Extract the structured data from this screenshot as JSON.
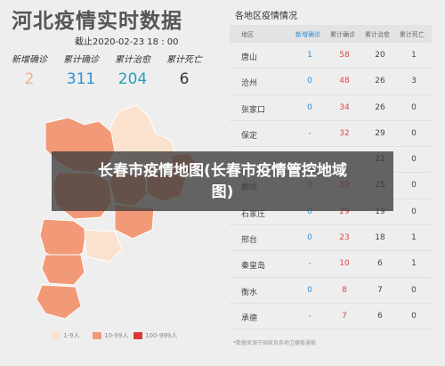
{
  "header": {
    "title": "河北疫情实时数据",
    "deadline": "截止2020-02-23 18 : 00"
  },
  "stats": [
    {
      "label": "新增确诊",
      "value": "2",
      "color": "#f3b28a"
    },
    {
      "label": "累计确诊",
      "value": "311",
      "color": "#2e8fd6"
    },
    {
      "label": "累计治愈",
      "value": "204",
      "color": "#2a9fb8"
    },
    {
      "label": "累计死亡",
      "value": "6",
      "color": "#333333"
    }
  ],
  "legend": [
    {
      "label": "1-9人",
      "color": "#fbe2cf"
    },
    {
      "label": "10-99人",
      "color": "#f29a78"
    },
    {
      "label": "100-999人",
      "color": "#d83a3a"
    }
  ],
  "table": {
    "title": "各地区疫情情况",
    "headers": [
      "地区",
      "新增确诊",
      "累计确诊",
      "累计治愈",
      "累计死亡"
    ],
    "rows": [
      [
        "唐山",
        "1",
        "58",
        "20",
        "1"
      ],
      [
        "沧州",
        "0",
        "48",
        "26",
        "3"
      ],
      [
        "张家口",
        "0",
        "34",
        "26",
        "0"
      ],
      [
        "保定",
        "-",
        "32",
        "29",
        "0"
      ],
      [
        "",
        "",
        "",
        "22",
        "0"
      ],
      [
        "廊坊",
        "0",
        "30",
        "25",
        "0"
      ],
      [
        "石家庄",
        "0",
        "29",
        "19",
        "0"
      ],
      [
        "邢台",
        "0",
        "23",
        "18",
        "1"
      ],
      [
        "秦皇岛",
        "-",
        "10",
        "6",
        "1"
      ],
      [
        "衡水",
        "0",
        "8",
        "7",
        "0"
      ],
      [
        "承德",
        "-",
        "7",
        "6",
        "0"
      ]
    ],
    "note": "*数据来源于国家及各地卫健委通报"
  },
  "overlay": {
    "line1": "长春市疫情地图(长春市疫情管控地域",
    "line2": "图)"
  }
}
